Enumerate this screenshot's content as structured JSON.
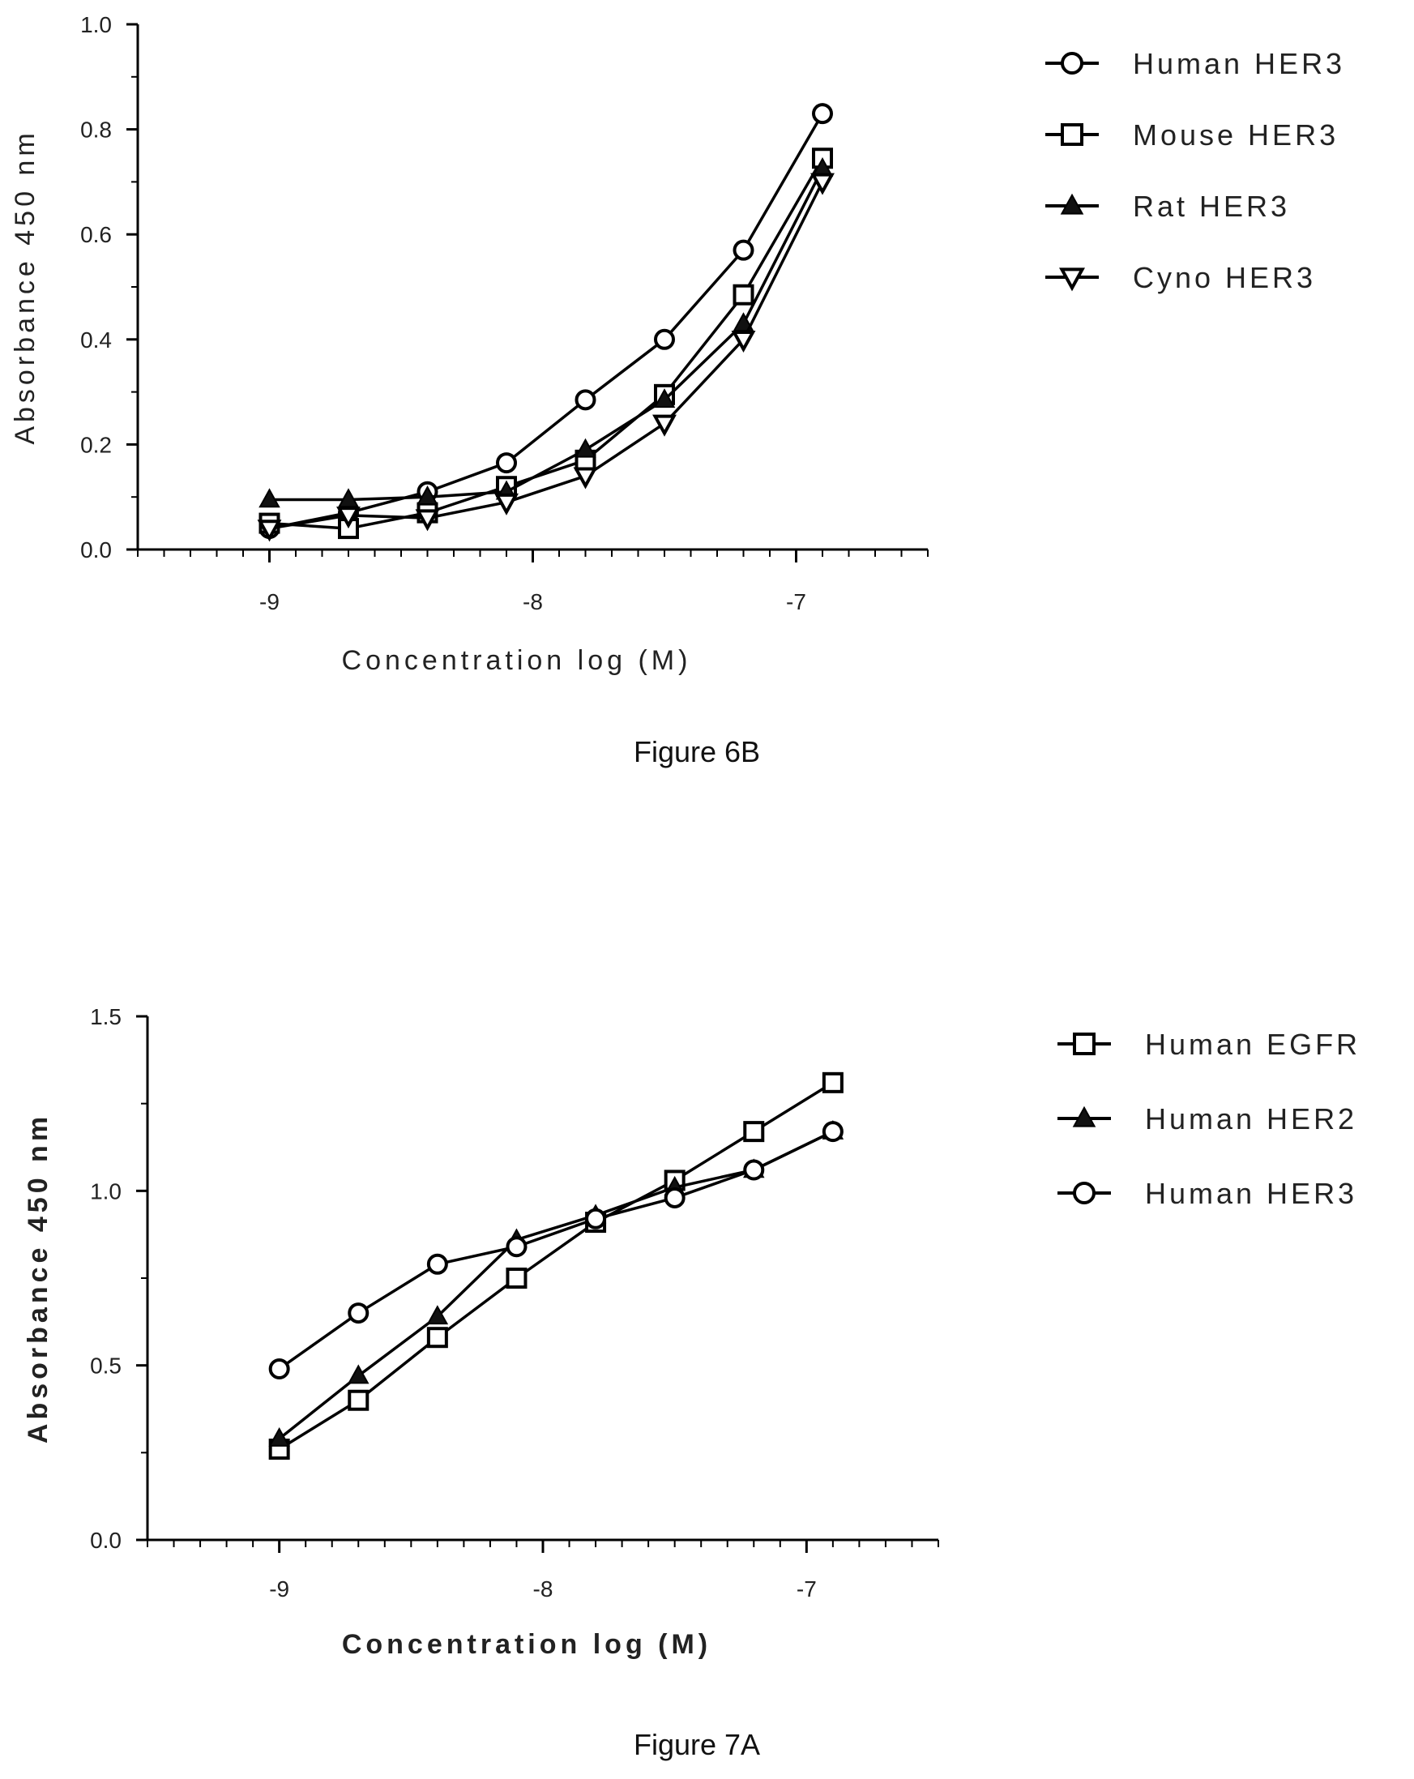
{
  "chart_data": [
    {
      "type": "line",
      "caption": "Figure 6B",
      "xlabel": "Concentration log (M)",
      "ylabel": "Absorbance 450 nm",
      "xlim": [
        -9.5,
        -6.5
      ],
      "ylim": [
        0.0,
        1.0
      ],
      "xticks": [
        -9,
        -8,
        -7
      ],
      "xtick_labels": [
        "-9",
        "-8",
        "-7"
      ],
      "yticks": [
        0.0,
        0.2,
        0.4,
        0.6,
        0.8,
        1.0
      ],
      "ytick_labels": [
        "0.0",
        "0.2",
        "0.4",
        "0.6",
        "0.8",
        "1.0"
      ],
      "grid": false,
      "legend_position": "right",
      "x": [
        -9.0,
        -8.7,
        -8.4,
        -8.1,
        -7.8,
        -7.5,
        -7.2,
        -6.9
      ],
      "series": [
        {
          "name": "Human HER3",
          "marker": "circle",
          "values": [
            0.04,
            0.07,
            0.11,
            0.165,
            0.285,
            0.4,
            0.57,
            0.83
          ]
        },
        {
          "name": "Mouse HER3",
          "marker": "square",
          "values": [
            0.05,
            0.04,
            0.07,
            0.12,
            0.17,
            0.295,
            0.485,
            0.745
          ]
        },
        {
          "name": "Rat HER3",
          "marker": "triangle-up",
          "values": [
            0.095,
            0.095,
            0.1,
            0.11,
            0.19,
            0.285,
            0.43,
            0.725
          ]
        },
        {
          "name": "Cyno HER3",
          "marker": "triangle-down",
          "values": [
            0.04,
            0.065,
            0.06,
            0.09,
            0.14,
            0.24,
            0.4,
            0.7
          ]
        }
      ]
    },
    {
      "type": "line",
      "caption": "Figure 7A",
      "xlabel": "Concentration log (M)",
      "ylabel": "Absorbance 450 nm",
      "xlim": [
        -9.5,
        -6.5
      ],
      "ylim": [
        0.0,
        1.5
      ],
      "xticks": [
        -9,
        -8,
        -7
      ],
      "xtick_labels": [
        "-9",
        "-8",
        "-7"
      ],
      "yticks": [
        0.0,
        0.5,
        1.0,
        1.5
      ],
      "ytick_labels": [
        "0.0",
        "0.5",
        "1.0",
        "1.5"
      ],
      "grid": false,
      "legend_position": "right",
      "x": [
        -9.0,
        -8.7,
        -8.4,
        -8.1,
        -7.8,
        -7.5,
        -7.2,
        -6.9
      ],
      "series": [
        {
          "name": "Human EGFR",
          "marker": "square",
          "values": [
            0.26,
            0.4,
            0.58,
            0.75,
            0.91,
            1.03,
            1.17,
            1.31
          ]
        },
        {
          "name": "Human HER2",
          "marker": "triangle-up",
          "values": [
            0.29,
            0.47,
            0.64,
            0.86,
            0.93,
            1.01,
            1.06,
            1.17
          ]
        },
        {
          "name": "Human HER3",
          "marker": "circle",
          "values": [
            0.49,
            0.65,
            0.79,
            0.84,
            0.92,
            0.98,
            1.06,
            1.17
          ]
        }
      ]
    }
  ]
}
